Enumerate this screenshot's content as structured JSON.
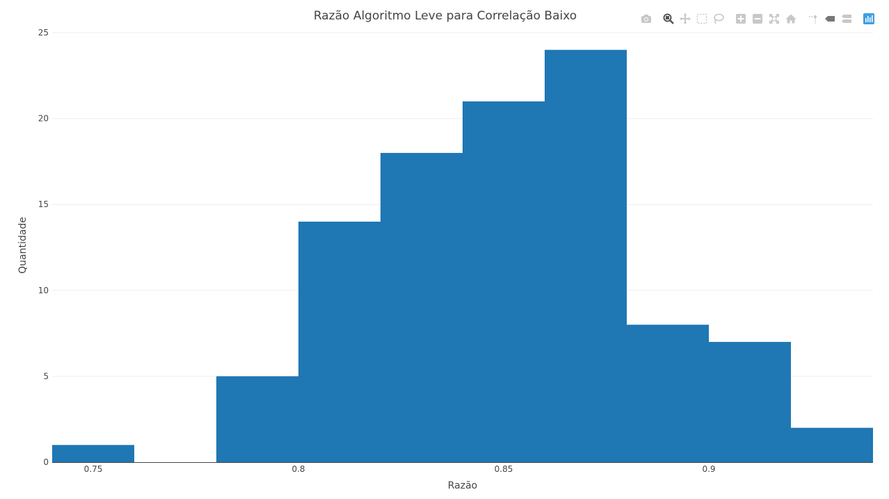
{
  "chart_data": {
    "type": "bar",
    "title": "Razão Algoritmo Leve para Correlação Baixo",
    "xlabel": "Razão",
    "ylabel": "Quantidade",
    "bins": [
      {
        "x0": 0.74,
        "x1": 0.76,
        "count": 1
      },
      {
        "x0": 0.76,
        "x1": 0.78,
        "count": 0
      },
      {
        "x0": 0.78,
        "x1": 0.8,
        "count": 5
      },
      {
        "x0": 0.8,
        "x1": 0.82,
        "count": 14
      },
      {
        "x0": 0.82,
        "x1": 0.84,
        "count": 18
      },
      {
        "x0": 0.84,
        "x1": 0.86,
        "count": 21
      },
      {
        "x0": 0.86,
        "x1": 0.88,
        "count": 24
      },
      {
        "x0": 0.88,
        "x1": 0.9,
        "count": 8
      },
      {
        "x0": 0.9,
        "x1": 0.92,
        "count": 7
      },
      {
        "x0": 0.92,
        "x1": 0.94,
        "count": 2
      }
    ],
    "xlim": [
      0.74,
      0.94
    ],
    "ylim": [
      0,
      25
    ],
    "xticks": [
      0.75,
      0.8,
      0.85,
      0.9
    ],
    "xtick_labels": [
      "0.75",
      "0.8",
      "0.85",
      "0.9"
    ],
    "yticks": [
      0,
      5,
      10,
      15,
      20,
      25
    ],
    "ytick_labels": [
      "0",
      "5",
      "10",
      "15",
      "20",
      "25"
    ],
    "grid": true,
    "bar_color": "#1f77b4",
    "legend": false
  },
  "modebar": {
    "buttons": [
      {
        "name": "camera-icon",
        "color": "#c8c8c8"
      },
      {
        "name": "zoom-icon",
        "color": "#555555"
      },
      {
        "name": "pan-icon",
        "color": "#c8c8c8"
      },
      {
        "name": "box-select-icon",
        "color": "#c8c8c8"
      },
      {
        "name": "lasso-icon",
        "color": "#c8c8c8"
      },
      {
        "name": "zoom-in-icon",
        "color": "#c8c8c8"
      },
      {
        "name": "zoom-out-icon",
        "color": "#c8c8c8"
      },
      {
        "name": "autoscale-icon",
        "color": "#c8c8c8"
      },
      {
        "name": "reset-axes-icon",
        "color": "#c8c8c8"
      },
      {
        "name": "spike-lines-icon",
        "color": "#c8c8c8"
      },
      {
        "name": "hover-closest-icon",
        "color": "#777777"
      },
      {
        "name": "hover-compare-icon",
        "color": "#c8c8c8"
      },
      {
        "name": "plotly-logo-icon",
        "color": "#3f9fe0"
      }
    ]
  }
}
